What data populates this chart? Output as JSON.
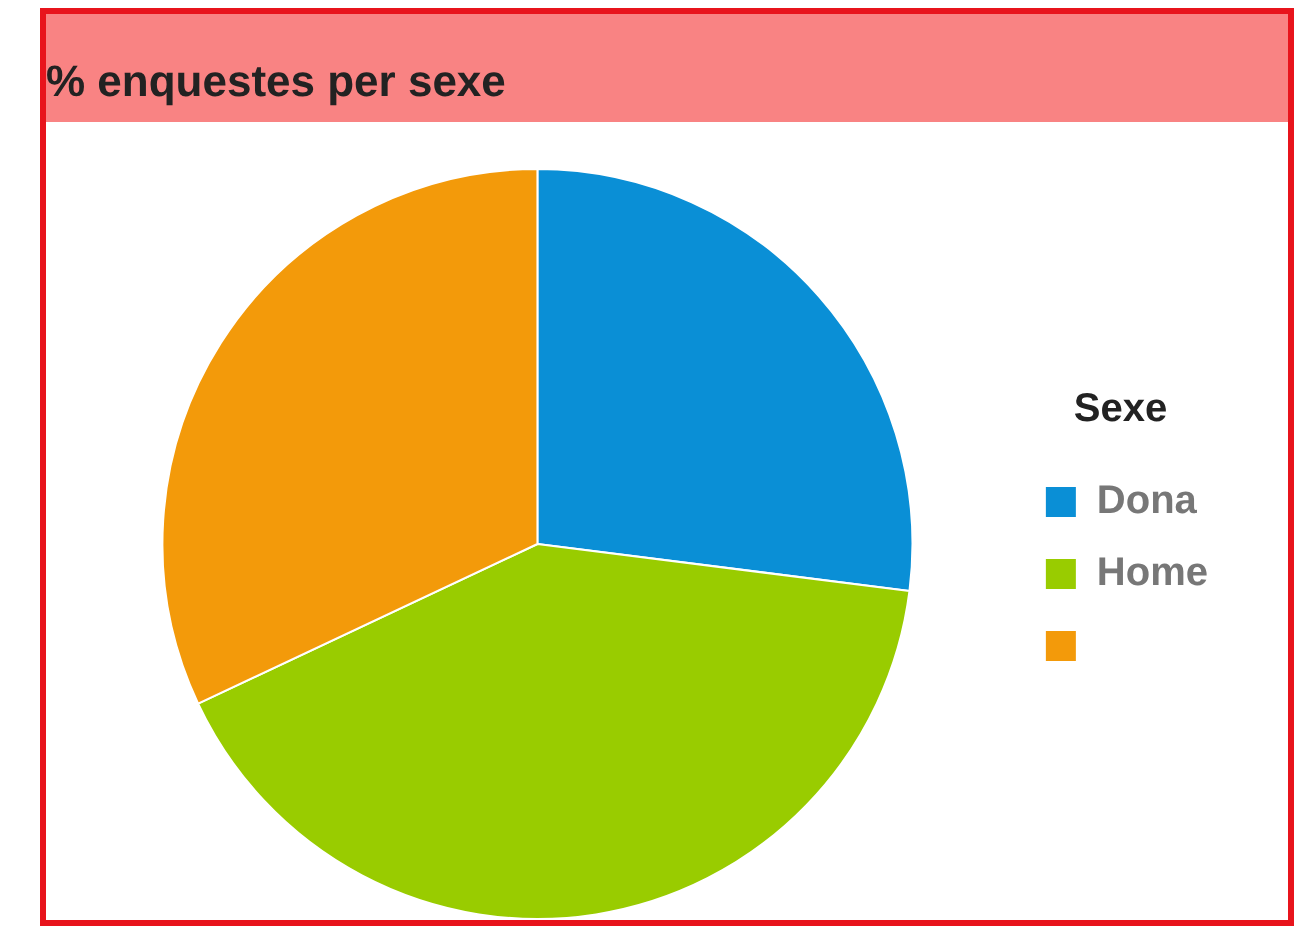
{
  "chart_data": {
    "type": "pie",
    "title": "% enquestes per sexe",
    "legend_title": "Sexe",
    "categories": [
      "Dona",
      "Home",
      null
    ],
    "values": [
      27,
      41,
      32
    ],
    "colors": [
      "#0a8fd6",
      "#99cc00",
      "#f39a0a"
    ],
    "legend": "right"
  }
}
